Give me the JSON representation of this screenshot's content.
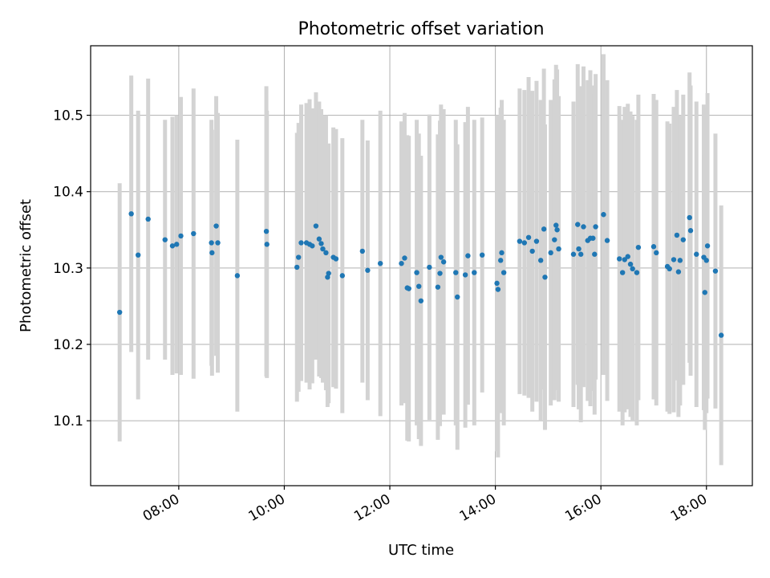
{
  "chart_data": {
    "type": "scatter",
    "title": "Photometric offset variation",
    "xlabel": "UTC time",
    "ylabel": "Photometric offset",
    "x_unit": "hours UTC",
    "xlim": [
      6.33,
      18.87
    ],
    "ylim": [
      10.015,
      10.591
    ],
    "grid": true,
    "colors": {
      "points": "#1f77b4",
      "errorbars": "#d3d3d3",
      "grid": "#b0b0b0"
    },
    "xticks": [
      {
        "value": 8,
        "label": "08:00"
      },
      {
        "value": 10,
        "label": "10:00"
      },
      {
        "value": 12,
        "label": "12:00"
      },
      {
        "value": 14,
        "label": "14:00"
      },
      {
        "value": 16,
        "label": "16:00"
      },
      {
        "value": 18,
        "label": "18:00"
      }
    ],
    "yticks": [
      {
        "value": 10.1,
        "label": "10.1"
      },
      {
        "value": 10.2,
        "label": "10.2"
      },
      {
        "value": 10.3,
        "label": "10.3"
      },
      {
        "value": 10.4,
        "label": "10.4"
      },
      {
        "value": 10.5,
        "label": "10.5"
      }
    ],
    "points": [
      {
        "x": 6.88,
        "y": 10.242,
        "err": 0.169
      },
      {
        "x": 7.1,
        "y": 10.371,
        "err": 0.181
      },
      {
        "x": 7.23,
        "y": 10.317,
        "err": 0.189
      },
      {
        "x": 7.42,
        "y": 10.364,
        "err": 0.184
      },
      {
        "x": 7.74,
        "y": 10.337,
        "err": 0.157
      },
      {
        "x": 7.88,
        "y": 10.329,
        "err": 0.169
      },
      {
        "x": 7.96,
        "y": 10.331,
        "err": 0.169
      },
      {
        "x": 8.04,
        "y": 10.342,
        "err": 0.182
      },
      {
        "x": 8.28,
        "y": 10.345,
        "err": 0.19
      },
      {
        "x": 8.62,
        "y": 10.333,
        "err": 0.161
      },
      {
        "x": 8.63,
        "y": 10.32,
        "err": 0.161
      },
      {
        "x": 8.71,
        "y": 10.355,
        "err": 0.17
      },
      {
        "x": 8.74,
        "y": 10.333,
        "err": 0.17
      },
      {
        "x": 9.11,
        "y": 10.29,
        "err": 0.178
      },
      {
        "x": 9.66,
        "y": 10.348,
        "err": 0.19
      },
      {
        "x": 9.67,
        "y": 10.331,
        "err": 0.175
      },
      {
        "x": 10.24,
        "y": 10.301,
        "err": 0.176
      },
      {
        "x": 10.27,
        "y": 10.314,
        "err": 0.176
      },
      {
        "x": 10.32,
        "y": 10.333,
        "err": 0.181
      },
      {
        "x": 10.42,
        "y": 10.333,
        "err": 0.183
      },
      {
        "x": 10.48,
        "y": 10.331,
        "err": 0.19
      },
      {
        "x": 10.53,
        "y": 10.329,
        "err": 0.18
      },
      {
        "x": 10.6,
        "y": 10.355,
        "err": 0.175
      },
      {
        "x": 10.66,
        "y": 10.338,
        "err": 0.18
      },
      {
        "x": 10.7,
        "y": 10.332,
        "err": 0.176
      },
      {
        "x": 10.73,
        "y": 10.325,
        "err": 0.175
      },
      {
        "x": 10.79,
        "y": 10.32,
        "err": 0.18
      },
      {
        "x": 10.82,
        "y": 10.288,
        "err": 0.17
      },
      {
        "x": 10.84,
        "y": 10.293,
        "err": 0.17
      },
      {
        "x": 10.93,
        "y": 10.314,
        "err": 0.17
      },
      {
        "x": 10.98,
        "y": 10.312,
        "err": 0.17
      },
      {
        "x": 11.1,
        "y": 10.29,
        "err": 0.18
      },
      {
        "x": 11.48,
        "y": 10.322,
        "err": 0.172
      },
      {
        "x": 11.58,
        "y": 10.297,
        "err": 0.17
      },
      {
        "x": 11.82,
        "y": 10.306,
        "err": 0.2
      },
      {
        "x": 12.22,
        "y": 10.306,
        "err": 0.186
      },
      {
        "x": 12.28,
        "y": 10.313,
        "err": 0.19
      },
      {
        "x": 12.33,
        "y": 10.274,
        "err": 0.2
      },
      {
        "x": 12.36,
        "y": 10.273,
        "err": 0.2
      },
      {
        "x": 12.51,
        "y": 10.294,
        "err": 0.2
      },
      {
        "x": 12.55,
        "y": 10.276,
        "err": 0.2
      },
      {
        "x": 12.59,
        "y": 10.257,
        "err": 0.19
      },
      {
        "x": 12.75,
        "y": 10.301,
        "err": 0.2
      },
      {
        "x": 12.91,
        "y": 10.275,
        "err": 0.2
      },
      {
        "x": 12.95,
        "y": 10.293,
        "err": 0.2
      },
      {
        "x": 12.97,
        "y": 10.314,
        "err": 0.2
      },
      {
        "x": 13.02,
        "y": 10.308,
        "err": 0.2
      },
      {
        "x": 13.25,
        "y": 10.294,
        "err": 0.2
      },
      {
        "x": 13.28,
        "y": 10.262,
        "err": 0.2
      },
      {
        "x": 13.43,
        "y": 10.291,
        "err": 0.2
      },
      {
        "x": 13.48,
        "y": 10.316,
        "err": 0.195
      },
      {
        "x": 13.6,
        "y": 10.294,
        "err": 0.2
      },
      {
        "x": 13.75,
        "y": 10.317,
        "err": 0.18
      },
      {
        "x": 14.03,
        "y": 10.28,
        "err": 0.22
      },
      {
        "x": 14.05,
        "y": 10.272,
        "err": 0.22
      },
      {
        "x": 14.1,
        "y": 10.31,
        "err": 0.2
      },
      {
        "x": 14.12,
        "y": 10.32,
        "err": 0.2
      },
      {
        "x": 14.16,
        "y": 10.294,
        "err": 0.2
      },
      {
        "x": 14.46,
        "y": 10.335,
        "err": 0.2
      },
      {
        "x": 14.55,
        "y": 10.333,
        "err": 0.2
      },
      {
        "x": 14.63,
        "y": 10.34,
        "err": 0.21
      },
      {
        "x": 14.7,
        "y": 10.322,
        "err": 0.21
      },
      {
        "x": 14.78,
        "y": 10.335,
        "err": 0.21
      },
      {
        "x": 14.86,
        "y": 10.31,
        "err": 0.21
      },
      {
        "x": 14.92,
        "y": 10.351,
        "err": 0.21
      },
      {
        "x": 14.94,
        "y": 10.288,
        "err": 0.2
      },
      {
        "x": 15.05,
        "y": 10.32,
        "err": 0.2
      },
      {
        "x": 15.12,
        "y": 10.337,
        "err": 0.21
      },
      {
        "x": 15.15,
        "y": 10.356,
        "err": 0.21
      },
      {
        "x": 15.17,
        "y": 10.35,
        "err": 0.21
      },
      {
        "x": 15.2,
        "y": 10.325,
        "err": 0.2
      },
      {
        "x": 15.48,
        "y": 10.318,
        "err": 0.2
      },
      {
        "x": 15.56,
        "y": 10.357,
        "err": 0.21
      },
      {
        "x": 15.58,
        "y": 10.325,
        "err": 0.21
      },
      {
        "x": 15.62,
        "y": 10.318,
        "err": 0.22
      },
      {
        "x": 15.67,
        "y": 10.354,
        "err": 0.21
      },
      {
        "x": 15.75,
        "y": 10.336,
        "err": 0.21
      },
      {
        "x": 15.8,
        "y": 10.339,
        "err": 0.22
      },
      {
        "x": 15.85,
        "y": 10.339,
        "err": 0.2
      },
      {
        "x": 15.88,
        "y": 10.318,
        "err": 0.21
      },
      {
        "x": 15.9,
        "y": 10.354,
        "err": 0.2
      },
      {
        "x": 16.05,
        "y": 10.37,
        "err": 0.21
      },
      {
        "x": 16.12,
        "y": 10.336,
        "err": 0.21
      },
      {
        "x": 16.35,
        "y": 10.312,
        "err": 0.2
      },
      {
        "x": 16.41,
        "y": 10.294,
        "err": 0.2
      },
      {
        "x": 16.45,
        "y": 10.311,
        "err": 0.2
      },
      {
        "x": 16.51,
        "y": 10.315,
        "err": 0.2
      },
      {
        "x": 16.56,
        "y": 10.305,
        "err": 0.2
      },
      {
        "x": 16.6,
        "y": 10.299,
        "err": 0.2
      },
      {
        "x": 16.68,
        "y": 10.294,
        "err": 0.2
      },
      {
        "x": 16.71,
        "y": 10.327,
        "err": 0.2
      },
      {
        "x": 17.0,
        "y": 10.328,
        "err": 0.2
      },
      {
        "x": 17.05,
        "y": 10.32,
        "err": 0.2
      },
      {
        "x": 17.26,
        "y": 10.302,
        "err": 0.19
      },
      {
        "x": 17.3,
        "y": 10.299,
        "err": 0.19
      },
      {
        "x": 17.38,
        "y": 10.311,
        "err": 0.2
      },
      {
        "x": 17.44,
        "y": 10.343,
        "err": 0.19
      },
      {
        "x": 17.47,
        "y": 10.295,
        "err": 0.19
      },
      {
        "x": 17.5,
        "y": 10.31,
        "err": 0.19
      },
      {
        "x": 17.56,
        "y": 10.337,
        "err": 0.19
      },
      {
        "x": 17.68,
        "y": 10.366,
        "err": 0.19
      },
      {
        "x": 17.7,
        "y": 10.349,
        "err": 0.19
      },
      {
        "x": 17.81,
        "y": 10.318,
        "err": 0.2
      },
      {
        "x": 17.95,
        "y": 10.314,
        "err": 0.2
      },
      {
        "x": 17.97,
        "y": 10.268,
        "err": 0.18
      },
      {
        "x": 18.0,
        "y": 10.31,
        "err": 0.2
      },
      {
        "x": 18.02,
        "y": 10.329,
        "err": 0.2
      },
      {
        "x": 18.17,
        "y": 10.296,
        "err": 0.18
      },
      {
        "x": 18.28,
        "y": 10.212,
        "err": 0.17
      }
    ]
  }
}
